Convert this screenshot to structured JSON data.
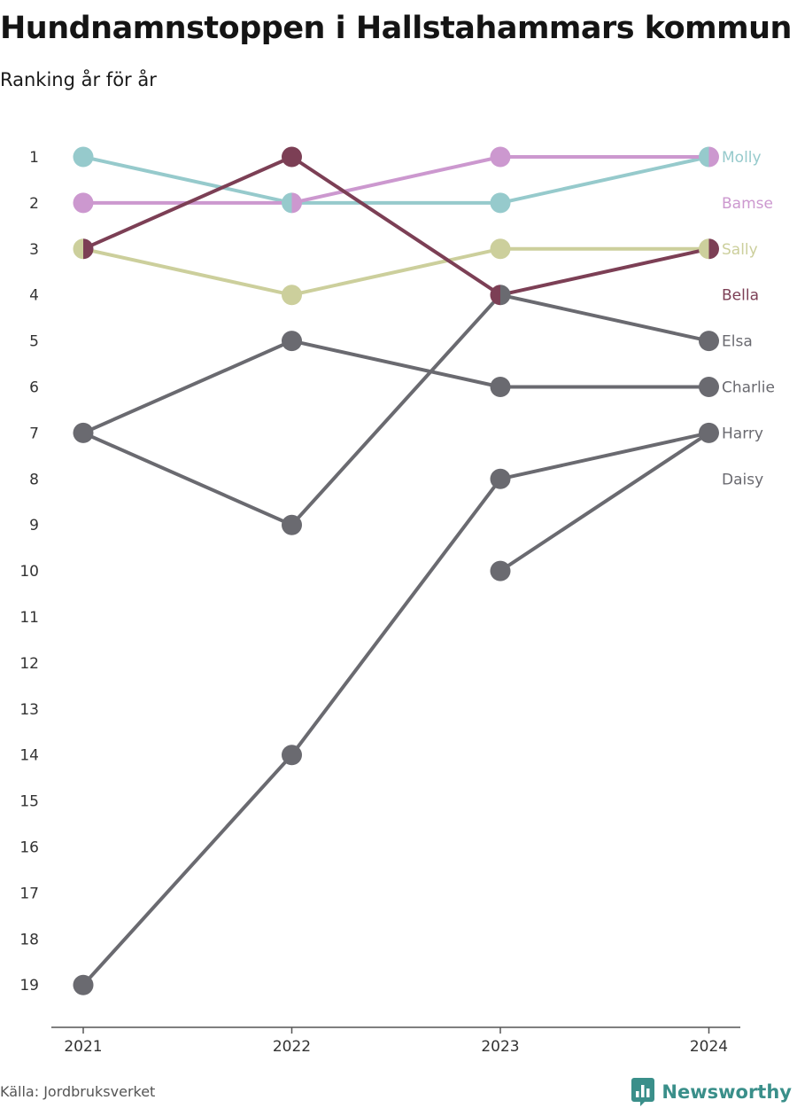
{
  "title": "Hundnamnstoppen i Hallstahammars kommun",
  "subtitle": "Ranking år för år",
  "source": "Källa: Jordbruksverket",
  "brand": {
    "name": "Newsworthy",
    "icon": "bar-chart-speech-icon",
    "color": "#3a8f8a"
  },
  "chart_data": {
    "type": "line",
    "chart_kind": "bump",
    "x": [
      "2021",
      "2022",
      "2023",
      "2024"
    ],
    "y_ticks": [
      1,
      2,
      3,
      4,
      5,
      6,
      7,
      8,
      9,
      10,
      11,
      12,
      13,
      14,
      15,
      16,
      17,
      18,
      19
    ],
    "ylim": [
      1,
      19
    ],
    "y_inverted": true,
    "grid": false,
    "series": [
      {
        "name": "Molly",
        "color": "#96cacc",
        "values": [
          1,
          2,
          2,
          1
        ]
      },
      {
        "name": "Bamse",
        "color": "#cc98cf",
        "values": [
          2,
          2,
          1,
          1
        ]
      },
      {
        "name": "Sally",
        "color": "#cccf9c",
        "values": [
          3,
          4,
          3,
          3
        ]
      },
      {
        "name": "Bella",
        "color": "#7c3f55",
        "values": [
          3,
          1,
          4,
          3
        ]
      },
      {
        "name": "Elsa",
        "color": "#6a6a70",
        "values": [
          7,
          9,
          4,
          5
        ]
      },
      {
        "name": "Charlie",
        "color": "#6a6a70",
        "values": [
          7,
          5,
          6,
          6
        ]
      },
      {
        "name": "Harry",
        "color": "#6a6a70",
        "values": [
          19,
          14,
          8,
          7
        ]
      },
      {
        "name": "Daisy",
        "color": "#6a6a70",
        "values": [
          null,
          null,
          10,
          7
        ]
      }
    ],
    "end_labels": [
      {
        "name": "Molly",
        "rank": 1,
        "color": "#96cacc"
      },
      {
        "name": "Bamse",
        "rank": 2,
        "color": "#cc98cf"
      },
      {
        "name": "Sally",
        "rank": 3,
        "color": "#cccf9c"
      },
      {
        "name": "Bella",
        "rank": 4,
        "color": "#7c3f55"
      },
      {
        "name": "Elsa",
        "rank": 5,
        "color": "#6a6a70"
      },
      {
        "name": "Charlie",
        "rank": 6,
        "color": "#6a6a70"
      },
      {
        "name": "Harry",
        "rank": 7,
        "color": "#6a6a70"
      },
      {
        "name": "Daisy",
        "rank": 8,
        "color": "#6a6a70"
      }
    ]
  }
}
